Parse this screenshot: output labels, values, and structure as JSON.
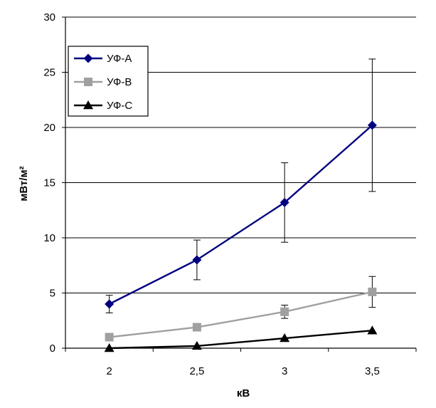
{
  "chart_data": {
    "type": "line",
    "title": "",
    "xlabel": "кВ",
    "ylabel": "мВт/м²",
    "x": [
      "2",
      "2,5",
      "3",
      "3,5"
    ],
    "ylim": [
      0,
      30
    ],
    "yticks": [
      0,
      5,
      10,
      15,
      20,
      25,
      30
    ],
    "grid": "horizontal",
    "legend_position": "top-left",
    "series": [
      {
        "name": "УФ-А",
        "values": [
          4.0,
          8.0,
          13.2,
          20.2
        ],
        "errors": [
          0.8,
          1.8,
          3.6,
          6.0
        ],
        "color": "#00007f",
        "marker": "diamond"
      },
      {
        "name": "УФ-В",
        "values": [
          1.0,
          1.9,
          3.3,
          5.1
        ],
        "errors": [
          0.0,
          0.0,
          0.6,
          1.4
        ],
        "color": "#a0a0a0",
        "marker": "square"
      },
      {
        "name": "УФ-С",
        "values": [
          0.0,
          0.2,
          0.9,
          1.6
        ],
        "errors": [
          0.0,
          0.0,
          0.0,
          0.0
        ],
        "color": "#000000",
        "marker": "triangle"
      }
    ]
  }
}
